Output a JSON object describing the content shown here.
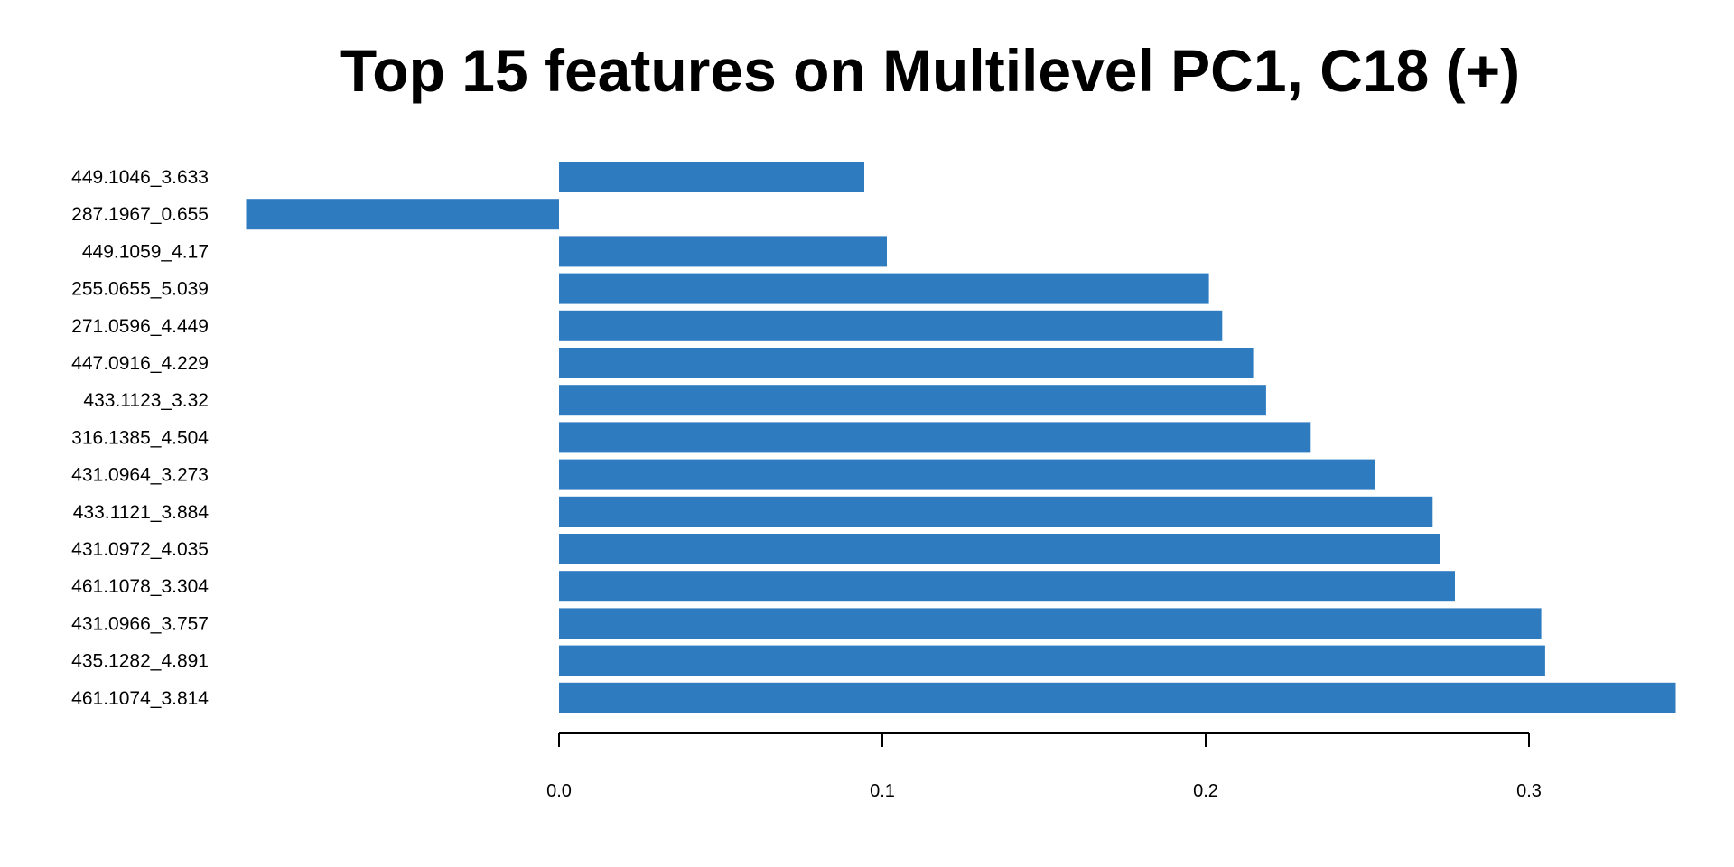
{
  "chart_data": {
    "type": "bar",
    "orientation": "horizontal",
    "title": "Top 15 features on Multilevel PC1, C18 (+)",
    "xlabel": "",
    "ylabel": "",
    "xlim": [
      -0.097,
      0.345
    ],
    "xticks": [
      0.0,
      0.1,
      0.2,
      0.3
    ],
    "xtick_labels": [
      "0.0",
      "0.1",
      "0.2",
      "0.3"
    ],
    "grid": false,
    "bar_color": "#2E7BC0",
    "categories": [
      "449.1046_3.633",
      "287.1967_0.655",
      "449.1059_4.17",
      "255.0655_5.039",
      "271.0596_4.449",
      "447.0916_4.229",
      "433.1123_3.32",
      "316.1385_4.504",
      "431.0964_3.273",
      "433.1121_3.884",
      "431.0972_4.035",
      "461.1078_3.304",
      "431.0966_3.757",
      "435.1282_4.891",
      "461.1074_3.814"
    ],
    "values": [
      0.0944,
      -0.0968,
      0.1014,
      0.201,
      0.2051,
      0.2147,
      0.2187,
      0.2325,
      0.2525,
      0.2702,
      0.2724,
      0.2771,
      0.3038,
      0.305,
      0.3454
    ]
  }
}
